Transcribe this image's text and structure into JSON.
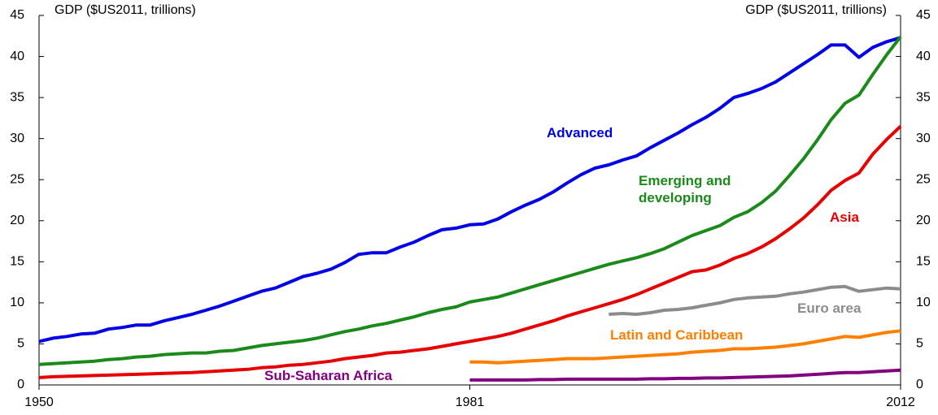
{
  "chart_data": {
    "type": "line",
    "ylabel": "GDP ($US2011, trillions)",
    "y2label": "GDP ($US2011, trillions)",
    "x": [
      1950,
      1951,
      1952,
      1953,
      1954,
      1955,
      1956,
      1957,
      1958,
      1959,
      1960,
      1961,
      1962,
      1963,
      1964,
      1965,
      1966,
      1967,
      1968,
      1969,
      1970,
      1971,
      1972,
      1973,
      1974,
      1975,
      1976,
      1977,
      1978,
      1979,
      1980,
      1981,
      1982,
      1983,
      1984,
      1985,
      1986,
      1987,
      1988,
      1989,
      1990,
      1991,
      1992,
      1993,
      1994,
      1995,
      1996,
      1997,
      1998,
      1999,
      2000,
      2001,
      2002,
      2003,
      2004,
      2005,
      2006,
      2007,
      2008,
      2009,
      2010,
      2011,
      2012
    ],
    "xlim": [
      1950,
      2012
    ],
    "xticks": [
      1950,
      1981,
      2012
    ],
    "ylim": [
      0,
      45
    ],
    "yticks": [
      0,
      5,
      10,
      15,
      20,
      25,
      30,
      35,
      40,
      45
    ],
    "y2lim": [
      0,
      45
    ],
    "y2ticks": [
      0,
      5,
      10,
      15,
      20,
      25,
      30,
      35,
      40,
      45
    ],
    "series": [
      {
        "name": "Advanced",
        "color": "#0000e6",
        "values": [
          5.3,
          5.7,
          5.9,
          6.2,
          6.3,
          6.8,
          7.0,
          7.3,
          7.3,
          7.8,
          8.2,
          8.6,
          9.1,
          9.6,
          10.2,
          10.8,
          11.4,
          11.8,
          12.5,
          13.2,
          13.6,
          14.1,
          14.9,
          15.9,
          16.1,
          16.1,
          16.8,
          17.4,
          18.2,
          18.9,
          19.1,
          19.5,
          19.6,
          20.2,
          21.1,
          21.9,
          22.6,
          23.5,
          24.6,
          25.6,
          26.4,
          26.8,
          27.4,
          27.9,
          28.9,
          29.8,
          30.7,
          31.7,
          32.6,
          33.7,
          35.0,
          35.5,
          36.1,
          36.9,
          38.0,
          39.1,
          40.2,
          41.4,
          41.4,
          39.9,
          41.1,
          41.8,
          42.3
        ]
      },
      {
        "name": "Emerging and developing",
        "color": "#1a8a1a",
        "values": [
          2.5,
          2.6,
          2.7,
          2.8,
          2.9,
          3.1,
          3.2,
          3.4,
          3.5,
          3.7,
          3.8,
          3.9,
          3.9,
          4.1,
          4.2,
          4.5,
          4.8,
          5.0,
          5.2,
          5.4,
          5.7,
          6.1,
          6.5,
          6.8,
          7.2,
          7.5,
          7.9,
          8.3,
          8.8,
          9.2,
          9.5,
          10.1,
          10.4,
          10.7,
          11.2,
          11.7,
          12.2,
          12.7,
          13.2,
          13.7,
          14.2,
          14.7,
          15.1,
          15.5,
          16.0,
          16.6,
          17.4,
          18.2,
          18.8,
          19.4,
          20.4,
          21.1,
          22.2,
          23.6,
          25.5,
          27.5,
          29.8,
          32.3,
          34.3,
          35.3,
          37.8,
          40.2,
          42.4
        ]
      },
      {
        "name": "Asia",
        "color": "#e60000",
        "values": [
          0.9,
          1.0,
          1.05,
          1.1,
          1.15,
          1.2,
          1.25,
          1.3,
          1.35,
          1.4,
          1.45,
          1.5,
          1.6,
          1.7,
          1.8,
          1.9,
          2.1,
          2.2,
          2.4,
          2.5,
          2.7,
          2.9,
          3.2,
          3.4,
          3.6,
          3.9,
          4.0,
          4.2,
          4.4,
          4.7,
          5.0,
          5.3,
          5.6,
          5.9,
          6.3,
          6.8,
          7.3,
          7.8,
          8.4,
          8.9,
          9.4,
          9.9,
          10.4,
          11.0,
          11.7,
          12.4,
          13.1,
          13.8,
          14.0,
          14.6,
          15.4,
          16.0,
          16.8,
          17.8,
          19.0,
          20.3,
          21.9,
          23.7,
          24.9,
          25.8,
          28.1,
          29.9,
          31.5
        ]
      },
      {
        "name": "Euro area",
        "color": "#8c8c8c",
        "values": [
          null,
          null,
          null,
          null,
          null,
          null,
          null,
          null,
          null,
          null,
          null,
          null,
          null,
          null,
          null,
          null,
          null,
          null,
          null,
          null,
          null,
          null,
          null,
          null,
          null,
          null,
          null,
          null,
          null,
          null,
          null,
          null,
          null,
          null,
          null,
          null,
          null,
          null,
          null,
          null,
          null,
          8.6,
          8.7,
          8.6,
          8.8,
          9.1,
          9.2,
          9.4,
          9.7,
          10.0,
          10.4,
          10.6,
          10.7,
          10.8,
          11.1,
          11.3,
          11.6,
          11.9,
          12.0,
          11.4,
          11.6,
          11.8,
          11.7
        ]
      },
      {
        "name": "Latin and Caribbean",
        "color": "#ff7f00",
        "values": [
          null,
          null,
          null,
          null,
          null,
          null,
          null,
          null,
          null,
          null,
          null,
          null,
          null,
          null,
          null,
          null,
          null,
          null,
          null,
          null,
          null,
          null,
          null,
          null,
          null,
          null,
          null,
          null,
          null,
          null,
          null,
          2.8,
          2.8,
          2.7,
          2.8,
          2.9,
          3.0,
          3.1,
          3.2,
          3.2,
          3.2,
          3.3,
          3.4,
          3.5,
          3.6,
          3.7,
          3.8,
          4.0,
          4.1,
          4.2,
          4.4,
          4.4,
          4.5,
          4.6,
          4.8,
          5.0,
          5.3,
          5.6,
          5.9,
          5.8,
          6.1,
          6.4,
          6.6
        ]
      },
      {
        "name": "Sub-Saharan Africa",
        "color": "#800080",
        "values": [
          null,
          null,
          null,
          null,
          null,
          null,
          null,
          null,
          null,
          null,
          null,
          null,
          null,
          null,
          null,
          null,
          null,
          null,
          null,
          null,
          null,
          null,
          null,
          null,
          null,
          null,
          null,
          null,
          null,
          null,
          null,
          0.6,
          0.6,
          0.6,
          0.6,
          0.6,
          0.65,
          0.65,
          0.7,
          0.7,
          0.7,
          0.7,
          0.7,
          0.7,
          0.75,
          0.75,
          0.8,
          0.8,
          0.85,
          0.85,
          0.9,
          0.95,
          1.0,
          1.05,
          1.1,
          1.2,
          1.3,
          1.4,
          1.5,
          1.5,
          1.6,
          1.7,
          1.8
        ]
      }
    ]
  }
}
